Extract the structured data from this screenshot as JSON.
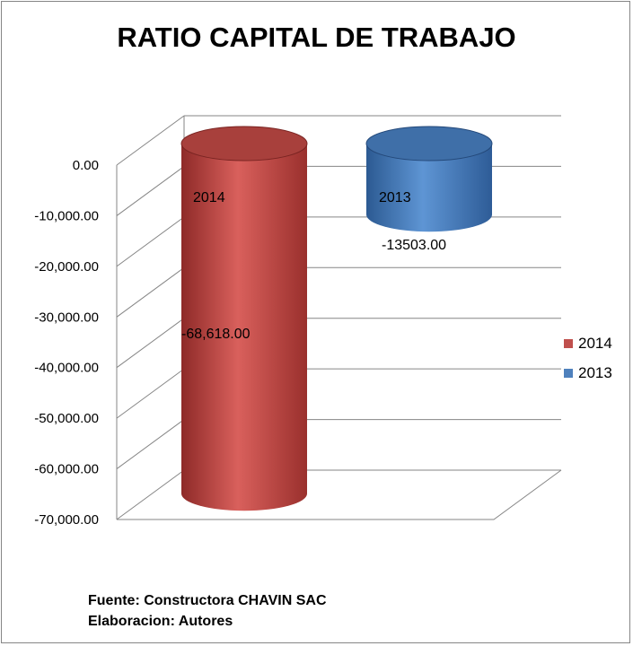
{
  "chart_data": {
    "type": "bar",
    "style": "3d-cylinder",
    "title": "RATIO CAPITAL DE TRABAJO",
    "categories": [
      "2014",
      "2013"
    ],
    "values": [
      -68618.0,
      -13503.0
    ],
    "value_labels": [
      "-68,618.00",
      "-13503.00"
    ],
    "series_colors": [
      "#C0504D",
      "#4F81BD"
    ],
    "ylim": [
      -70000,
      0
    ],
    "yticks": [
      0,
      -10000,
      -20000,
      -30000,
      -40000,
      -50000,
      -60000,
      -70000
    ],
    "ytick_labels": [
      "0.00",
      "-10,000.00",
      "-20,000.00",
      "-30,000.00",
      "-40,000.00",
      "-50,000.00",
      "-60,000.00",
      "-70,000.00"
    ],
    "grid": true,
    "legend": {
      "position": "right",
      "entries": [
        {
          "label": "2014",
          "color": "#C0504D"
        },
        {
          "label": "2013",
          "color": "#4F81BD"
        }
      ]
    }
  },
  "notes": {
    "source": "Fuente: Constructora  CHAVIN SAC",
    "authors": "Elaboracion: Autores"
  }
}
